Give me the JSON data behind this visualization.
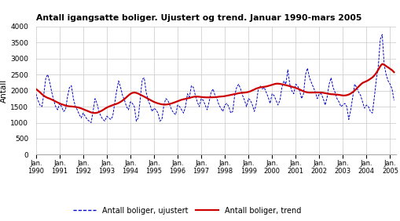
{
  "title": "Antall igangsatte boliger. Ujustert og trend. Januar 1990-mars 2005",
  "ylabel": "Antall",
  "ylim": [
    0,
    4000
  ],
  "yticks": [
    0,
    500,
    1000,
    1500,
    2000,
    2500,
    3000,
    3500,
    4000
  ],
  "legend_ujustert": "Antall boliger, ujustert",
  "legend_trend": "Antall boliger, trend",
  "color_ujustert": "#0000cc",
  "color_trend": "#cc0000",
  "bg_color": "#ffffff",
  "grid_color": "#c8c8c8",
  "ujustert": [
    1900,
    1700,
    1550,
    1500,
    1900,
    2400,
    2500,
    2250,
    1950,
    1700,
    1500,
    1400,
    1600,
    1500,
    1350,
    1400,
    1800,
    2100,
    2150,
    1750,
    1500,
    1400,
    1250,
    1150,
    1300,
    1200,
    1100,
    1050,
    1000,
    1350,
    1750,
    1600,
    1350,
    1200,
    1100,
    1050,
    1200,
    1150,
    1100,
    1200,
    1600,
    2000,
    2300,
    2100,
    1850,
    1700,
    1500,
    1400,
    1650,
    1600,
    1500,
    1050,
    1150,
    1750,
    2350,
    2400,
    1950,
    1700,
    1550,
    1350,
    1450,
    1400,
    1300,
    1050,
    1100,
    1550,
    1750,
    1700,
    1550,
    1400,
    1300,
    1250,
    1550,
    1500,
    1400,
    1300,
    1500,
    1900,
    1800,
    2150,
    2100,
    1850,
    1650,
    1500,
    1750,
    1700,
    1550,
    1400,
    1650,
    1950,
    2050,
    1850,
    1750,
    1550,
    1450,
    1350,
    1550,
    1600,
    1500,
    1300,
    1350,
    1850,
    2100,
    2200,
    2050,
    1850,
    1700,
    1500,
    1750,
    1700,
    1550,
    1350,
    1600,
    2050,
    2150,
    2050,
    2100,
    1950,
    1800,
    1600,
    1900,
    1850,
    1700,
    1550,
    1700,
    2100,
    2300,
    2200,
    2650,
    2200,
    2000,
    1900,
    2200,
    2150,
    2000,
    1750,
    1900,
    2500,
    2700,
    2400,
    2250,
    2100,
    1950,
    1750,
    1900,
    1900,
    1750,
    1550,
    1800,
    2200,
    2400,
    2100,
    1950,
    1750,
    1650,
    1500,
    1550,
    1600,
    1500,
    1100,
    1400,
    1800,
    2200,
    2100,
    1950,
    1850,
    1650,
    1450,
    1550,
    1500,
    1350,
    1300,
    1800,
    2350,
    2750,
    3600,
    3750,
    2800,
    2500,
    2300,
    2200,
    2050,
    1700
  ],
  "trend": [
    2050,
    2000,
    1950,
    1890,
    1840,
    1800,
    1770,
    1750,
    1720,
    1690,
    1660,
    1630,
    1600,
    1575,
    1555,
    1535,
    1520,
    1510,
    1505,
    1500,
    1490,
    1480,
    1465,
    1445,
    1420,
    1395,
    1370,
    1345,
    1320,
    1305,
    1300,
    1310,
    1330,
    1360,
    1395,
    1435,
    1470,
    1500,
    1525,
    1548,
    1568,
    1588,
    1615,
    1650,
    1690,
    1740,
    1795,
    1850,
    1900,
    1930,
    1940,
    1930,
    1905,
    1875,
    1845,
    1812,
    1778,
    1745,
    1712,
    1678,
    1648,
    1622,
    1602,
    1585,
    1572,
    1565,
    1565,
    1572,
    1585,
    1602,
    1622,
    1645,
    1668,
    1692,
    1715,
    1730,
    1742,
    1758,
    1770,
    1790,
    1805,
    1812,
    1812,
    1808,
    1800,
    1795,
    1790,
    1788,
    1788,
    1790,
    1792,
    1795,
    1800,
    1810,
    1815,
    1820,
    1828,
    1840,
    1852,
    1865,
    1878,
    1892,
    1905,
    1918,
    1928,
    1932,
    1938,
    1945,
    1960,
    1980,
    2008,
    2038,
    2065,
    2085,
    2102,
    2112,
    2120,
    2128,
    2145,
    2162,
    2182,
    2200,
    2215,
    2218,
    2210,
    2198,
    2185,
    2170,
    2155,
    2140,
    2122,
    2105,
    2085,
    2062,
    2035,
    2005,
    1978,
    1958,
    1945,
    1938,
    1938,
    1940,
    1942,
    1942,
    1942,
    1940,
    1932,
    1920,
    1908,
    1898,
    1888,
    1885,
    1878,
    1875,
    1868,
    1858,
    1848,
    1848,
    1858,
    1878,
    1910,
    1952,
    2005,
    2065,
    2128,
    2188,
    2240,
    2268,
    2295,
    2328,
    2368,
    2412,
    2472,
    2552,
    2652,
    2762,
    2832,
    2808,
    2765,
    2722,
    2678,
    2638,
    2575
  ]
}
